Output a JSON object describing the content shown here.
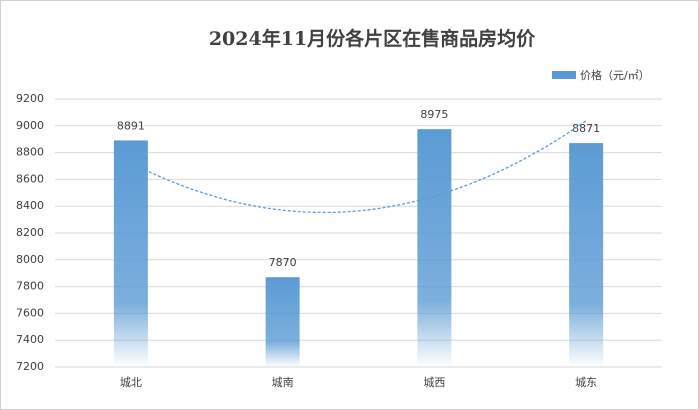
{
  "chart_data": {
    "type": "bar",
    "title": "2024年11月份各片区在售商品房均价",
    "categories": [
      "城北",
      "城南",
      "城西",
      "城东"
    ],
    "series": [
      {
        "name": "价格（元/㎡）",
        "color": "#5b9bd5",
        "values": [
          8891,
          7870,
          8975,
          8871
        ]
      }
    ],
    "ylim": [
      7200,
      9200
    ],
    "yticks": [
      7200,
      7400,
      7600,
      7800,
      8000,
      8200,
      8400,
      8600,
      8800,
      9000,
      9200
    ],
    "grid": true,
    "legend": "top-right",
    "data_labels": true,
    "trendline": "polynomial"
  }
}
